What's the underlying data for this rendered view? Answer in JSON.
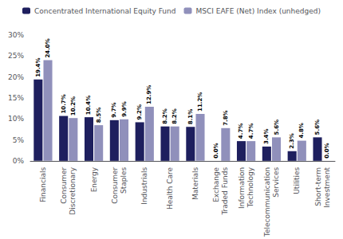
{
  "chart_data": {
    "type": "bar",
    "categories": [
      "Financials",
      "Consumer\nDiscretionary",
      "Energy",
      "Consumer\nStaples",
      "Industrials",
      "Health Care",
      "Materials",
      "Exchange\nTraded Funds",
      "Information\nTechnology",
      "Telecommunication\nServices",
      "Utilities",
      "Short-term\nInvestment"
    ],
    "series": [
      {
        "name": "Concentrated International Equity Fund",
        "color": "#1e1f5e",
        "values": [
          19.4,
          10.7,
          10.4,
          9.7,
          9.2,
          8.2,
          8.1,
          0.0,
          4.7,
          3.4,
          2.3,
          5.6
        ],
        "value_labels": [
          "19.4%",
          "10.7%",
          "10.4%",
          "9.7%",
          "9.2%",
          "8.2%",
          "8.1%",
          "0.0%",
          "4.7%",
          "3.4%",
          "2.3%",
          "5.6%"
        ]
      },
      {
        "name": "MSCI EAFE (Net) Index (unhedged)",
        "color": "#9090bb",
        "values": [
          24.0,
          10.2,
          8.5,
          9.9,
          12.9,
          8.2,
          11.2,
          7.8,
          4.7,
          5.6,
          4.8,
          0.0
        ],
        "value_labels": [
          "24.0%",
          "10.2%",
          "8.5%",
          "9.9%",
          "12.9%",
          "8.2%",
          "11.2%",
          "7.8%",
          "4.7%",
          "5.6%",
          "4.8%",
          "0.0%"
        ]
      }
    ],
    "ylim": [
      0,
      30
    ],
    "yticks": [
      {
        "value": 0,
        "label": "0%"
      },
      {
        "value": 5,
        "label": "5%"
      },
      {
        "value": 10,
        "label": "10%"
      },
      {
        "value": 15,
        "label": "15%"
      },
      {
        "value": 20,
        "label": "20%"
      },
      {
        "value": 25,
        "label": "25%"
      },
      {
        "value": 30,
        "label": "30%"
      }
    ],
    "grid": false,
    "legend": "top",
    "data_labels": true
  }
}
